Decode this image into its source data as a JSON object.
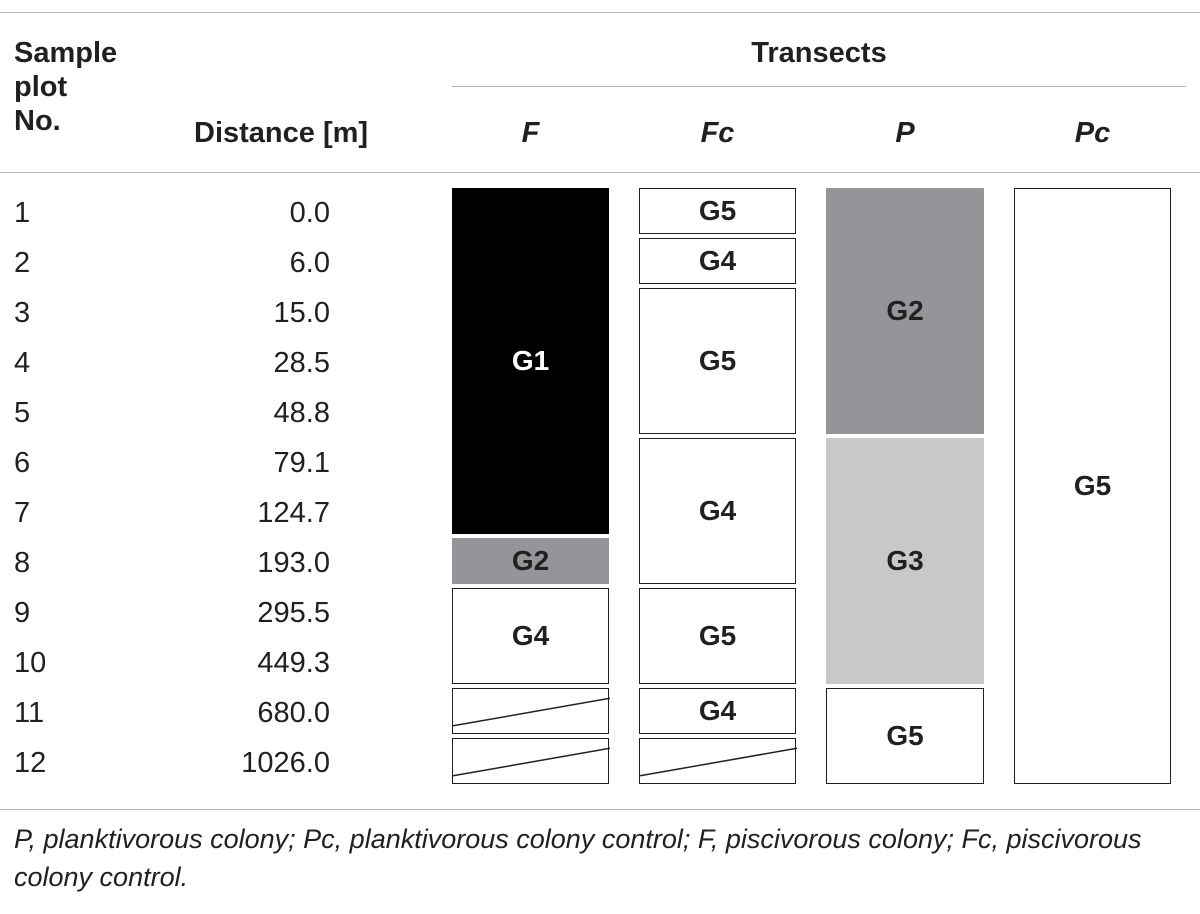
{
  "header": {
    "sample_plot_no": [
      "Sample",
      "plot",
      "No."
    ],
    "distance": "Distance [m]",
    "transects": "Transects",
    "transect_labels": {
      "F": "F",
      "Fc": "Fc",
      "P": "P",
      "Pc": "Pc"
    }
  },
  "rows": [
    {
      "plot": "1",
      "distance": "0.0"
    },
    {
      "plot": "2",
      "distance": "6.0"
    },
    {
      "plot": "3",
      "distance": "15.0"
    },
    {
      "plot": "4",
      "distance": "28.5"
    },
    {
      "plot": "5",
      "distance": "48.8"
    },
    {
      "plot": "6",
      "distance": "79.1"
    },
    {
      "plot": "7",
      "distance": "124.7"
    },
    {
      "plot": "8",
      "distance": "193.0"
    },
    {
      "plot": "9",
      "distance": "295.5"
    },
    {
      "plot": "10",
      "distance": "449.3"
    },
    {
      "plot": "11",
      "distance": "680.0"
    },
    {
      "plot": "12",
      "distance": "1026.0"
    }
  ],
  "transects": {
    "F": [
      {
        "label": "G1",
        "from_plot": 1,
        "to_plot": 7,
        "fill": "#000000"
      },
      {
        "label": "G2",
        "from_plot": 8,
        "to_plot": 8,
        "fill": "#939598"
      },
      {
        "label": "G4",
        "from_plot": 9,
        "to_plot": 10,
        "fill": "#ffffff"
      },
      {
        "label": "",
        "from_plot": 11,
        "to_plot": 11,
        "fill": "#ffffff",
        "hatched": true
      },
      {
        "label": "",
        "from_plot": 12,
        "to_plot": 12,
        "fill": "#ffffff",
        "hatched": true
      }
    ],
    "Fc": [
      {
        "label": "G5",
        "from_plot": 1,
        "to_plot": 1,
        "fill": "#ffffff"
      },
      {
        "label": "G4",
        "from_plot": 2,
        "to_plot": 2,
        "fill": "#ffffff"
      },
      {
        "label": "G5",
        "from_plot": 3,
        "to_plot": 5,
        "fill": "#ffffff"
      },
      {
        "label": "G4",
        "from_plot": 6,
        "to_plot": 8,
        "fill": "#ffffff"
      },
      {
        "label": "G5",
        "from_plot": 9,
        "to_plot": 10,
        "fill": "#ffffff"
      },
      {
        "label": "G4",
        "from_plot": 11,
        "to_plot": 11,
        "fill": "#ffffff"
      },
      {
        "label": "",
        "from_plot": 12,
        "to_plot": 12,
        "fill": "#ffffff",
        "hatched": true
      }
    ],
    "P": [
      {
        "label": "G2",
        "from_plot": 1,
        "to_plot": 5,
        "fill": "#939598"
      },
      {
        "label": "G3",
        "from_plot": 6,
        "to_plot": 10,
        "fill": "#c7c8ca"
      },
      {
        "label": "G5",
        "from_plot": 11,
        "to_plot": 12,
        "fill": "#ffffff"
      }
    ],
    "Pc": [
      {
        "label": "G5",
        "from_plot": 1,
        "to_plot": 12,
        "fill": "#ffffff"
      }
    ]
  },
  "caption": "P, planktivorous colony; Pc, planktivorous colony control; F, piscivorous colony; Fc, piscivorous colony control."
}
